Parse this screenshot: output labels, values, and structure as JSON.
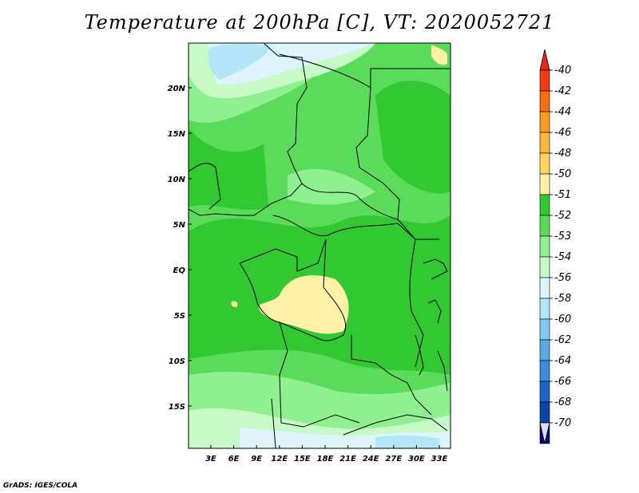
{
  "title": "Temperature at 200hPa [C], VT: 2020052721",
  "credit": "GrADS: IGES/COLA",
  "map": {
    "lat_labels": [
      "20N",
      "15N",
      "10N",
      "5N",
      "EQ",
      "5S",
      "10S",
      "15S"
    ],
    "lon_labels": [
      "3E",
      "6E",
      "9E",
      "12E",
      "15E",
      "18E",
      "21E",
      "24E",
      "27E",
      "30E",
      "33E"
    ]
  },
  "colorbar": {
    "labels": [
      "-40",
      "-42",
      "-44",
      "-46",
      "-48",
      "-50",
      "-51",
      "-52",
      "-53",
      "-54",
      "-56",
      "-58",
      "-60",
      "-62",
      "-64",
      "-66",
      "-68",
      "-70"
    ],
    "colors": [
      "#f03c14",
      "#f86e10",
      "#fa9a1e",
      "#fcb83c",
      "#fed660",
      "#fff2a6",
      "#32c832",
      "#5adc5a",
      "#8ef08e",
      "#c8fac8",
      "#dcf4fa",
      "#b4e6fa",
      "#82c8f0",
      "#5aaae6",
      "#3c8cdc",
      "#1e64c8",
      "#0a46aa",
      "#000a6e"
    ],
    "top_cap_color": "#e6281e",
    "bottom_cap_color": "#dcdcfa"
  }
}
